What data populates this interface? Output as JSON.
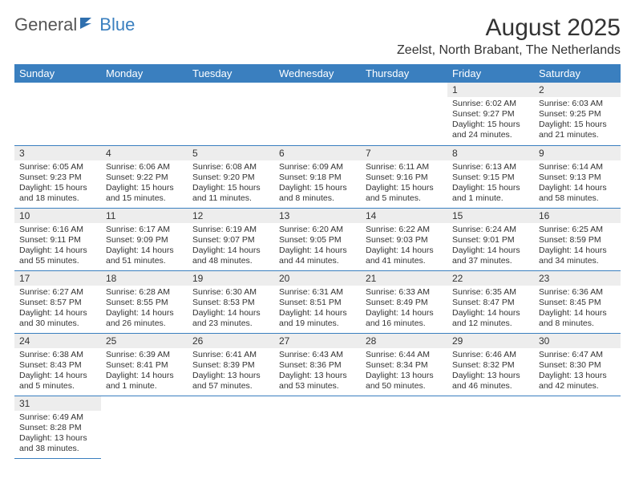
{
  "logo": {
    "general": "General",
    "blue": "Blue"
  },
  "title": {
    "month": "August 2025",
    "location": "Zeelst, North Brabant, The Netherlands"
  },
  "colors": {
    "header_bg": "#3a7fbf",
    "header_text": "#ffffff",
    "daynum_bg": "#ededed",
    "border": "#3a7fbf",
    "text": "#333333"
  },
  "weekdays": [
    "Sunday",
    "Monday",
    "Tuesday",
    "Wednesday",
    "Thursday",
    "Friday",
    "Saturday"
  ],
  "days": {
    "1": {
      "sr": "Sunrise: 6:02 AM",
      "ss": "Sunset: 9:27 PM",
      "dl": "Daylight: 15 hours and 24 minutes."
    },
    "2": {
      "sr": "Sunrise: 6:03 AM",
      "ss": "Sunset: 9:25 PM",
      "dl": "Daylight: 15 hours and 21 minutes."
    },
    "3": {
      "sr": "Sunrise: 6:05 AM",
      "ss": "Sunset: 9:23 PM",
      "dl": "Daylight: 15 hours and 18 minutes."
    },
    "4": {
      "sr": "Sunrise: 6:06 AM",
      "ss": "Sunset: 9:22 PM",
      "dl": "Daylight: 15 hours and 15 minutes."
    },
    "5": {
      "sr": "Sunrise: 6:08 AM",
      "ss": "Sunset: 9:20 PM",
      "dl": "Daylight: 15 hours and 11 minutes."
    },
    "6": {
      "sr": "Sunrise: 6:09 AM",
      "ss": "Sunset: 9:18 PM",
      "dl": "Daylight: 15 hours and 8 minutes."
    },
    "7": {
      "sr": "Sunrise: 6:11 AM",
      "ss": "Sunset: 9:16 PM",
      "dl": "Daylight: 15 hours and 5 minutes."
    },
    "8": {
      "sr": "Sunrise: 6:13 AM",
      "ss": "Sunset: 9:15 PM",
      "dl": "Daylight: 15 hours and 1 minute."
    },
    "9": {
      "sr": "Sunrise: 6:14 AM",
      "ss": "Sunset: 9:13 PM",
      "dl": "Daylight: 14 hours and 58 minutes."
    },
    "10": {
      "sr": "Sunrise: 6:16 AM",
      "ss": "Sunset: 9:11 PM",
      "dl": "Daylight: 14 hours and 55 minutes."
    },
    "11": {
      "sr": "Sunrise: 6:17 AM",
      "ss": "Sunset: 9:09 PM",
      "dl": "Daylight: 14 hours and 51 minutes."
    },
    "12": {
      "sr": "Sunrise: 6:19 AM",
      "ss": "Sunset: 9:07 PM",
      "dl": "Daylight: 14 hours and 48 minutes."
    },
    "13": {
      "sr": "Sunrise: 6:20 AM",
      "ss": "Sunset: 9:05 PM",
      "dl": "Daylight: 14 hours and 44 minutes."
    },
    "14": {
      "sr": "Sunrise: 6:22 AM",
      "ss": "Sunset: 9:03 PM",
      "dl": "Daylight: 14 hours and 41 minutes."
    },
    "15": {
      "sr": "Sunrise: 6:24 AM",
      "ss": "Sunset: 9:01 PM",
      "dl": "Daylight: 14 hours and 37 minutes."
    },
    "16": {
      "sr": "Sunrise: 6:25 AM",
      "ss": "Sunset: 8:59 PM",
      "dl": "Daylight: 14 hours and 34 minutes."
    },
    "17": {
      "sr": "Sunrise: 6:27 AM",
      "ss": "Sunset: 8:57 PM",
      "dl": "Daylight: 14 hours and 30 minutes."
    },
    "18": {
      "sr": "Sunrise: 6:28 AM",
      "ss": "Sunset: 8:55 PM",
      "dl": "Daylight: 14 hours and 26 minutes."
    },
    "19": {
      "sr": "Sunrise: 6:30 AM",
      "ss": "Sunset: 8:53 PM",
      "dl": "Daylight: 14 hours and 23 minutes."
    },
    "20": {
      "sr": "Sunrise: 6:31 AM",
      "ss": "Sunset: 8:51 PM",
      "dl": "Daylight: 14 hours and 19 minutes."
    },
    "21": {
      "sr": "Sunrise: 6:33 AM",
      "ss": "Sunset: 8:49 PM",
      "dl": "Daylight: 14 hours and 16 minutes."
    },
    "22": {
      "sr": "Sunrise: 6:35 AM",
      "ss": "Sunset: 8:47 PM",
      "dl": "Daylight: 14 hours and 12 minutes."
    },
    "23": {
      "sr": "Sunrise: 6:36 AM",
      "ss": "Sunset: 8:45 PM",
      "dl": "Daylight: 14 hours and 8 minutes."
    },
    "24": {
      "sr": "Sunrise: 6:38 AM",
      "ss": "Sunset: 8:43 PM",
      "dl": "Daylight: 14 hours and 5 minutes."
    },
    "25": {
      "sr": "Sunrise: 6:39 AM",
      "ss": "Sunset: 8:41 PM",
      "dl": "Daylight: 14 hours and 1 minute."
    },
    "26": {
      "sr": "Sunrise: 6:41 AM",
      "ss": "Sunset: 8:39 PM",
      "dl": "Daylight: 13 hours and 57 minutes."
    },
    "27": {
      "sr": "Sunrise: 6:43 AM",
      "ss": "Sunset: 8:36 PM",
      "dl": "Daylight: 13 hours and 53 minutes."
    },
    "28": {
      "sr": "Sunrise: 6:44 AM",
      "ss": "Sunset: 8:34 PM",
      "dl": "Daylight: 13 hours and 50 minutes."
    },
    "29": {
      "sr": "Sunrise: 6:46 AM",
      "ss": "Sunset: 8:32 PM",
      "dl": "Daylight: 13 hours and 46 minutes."
    },
    "30": {
      "sr": "Sunrise: 6:47 AM",
      "ss": "Sunset: 8:30 PM",
      "dl": "Daylight: 13 hours and 42 minutes."
    },
    "31": {
      "sr": "Sunrise: 6:49 AM",
      "ss": "Sunset: 8:28 PM",
      "dl": "Daylight: 13 hours and 38 minutes."
    }
  },
  "grid": [
    [
      null,
      null,
      null,
      null,
      null,
      "1",
      "2"
    ],
    [
      "3",
      "4",
      "5",
      "6",
      "7",
      "8",
      "9"
    ],
    [
      "10",
      "11",
      "12",
      "13",
      "14",
      "15",
      "16"
    ],
    [
      "17",
      "18",
      "19",
      "20",
      "21",
      "22",
      "23"
    ],
    [
      "24",
      "25",
      "26",
      "27",
      "28",
      "29",
      "30"
    ],
    [
      "31",
      null,
      null,
      null,
      null,
      null,
      null
    ]
  ]
}
